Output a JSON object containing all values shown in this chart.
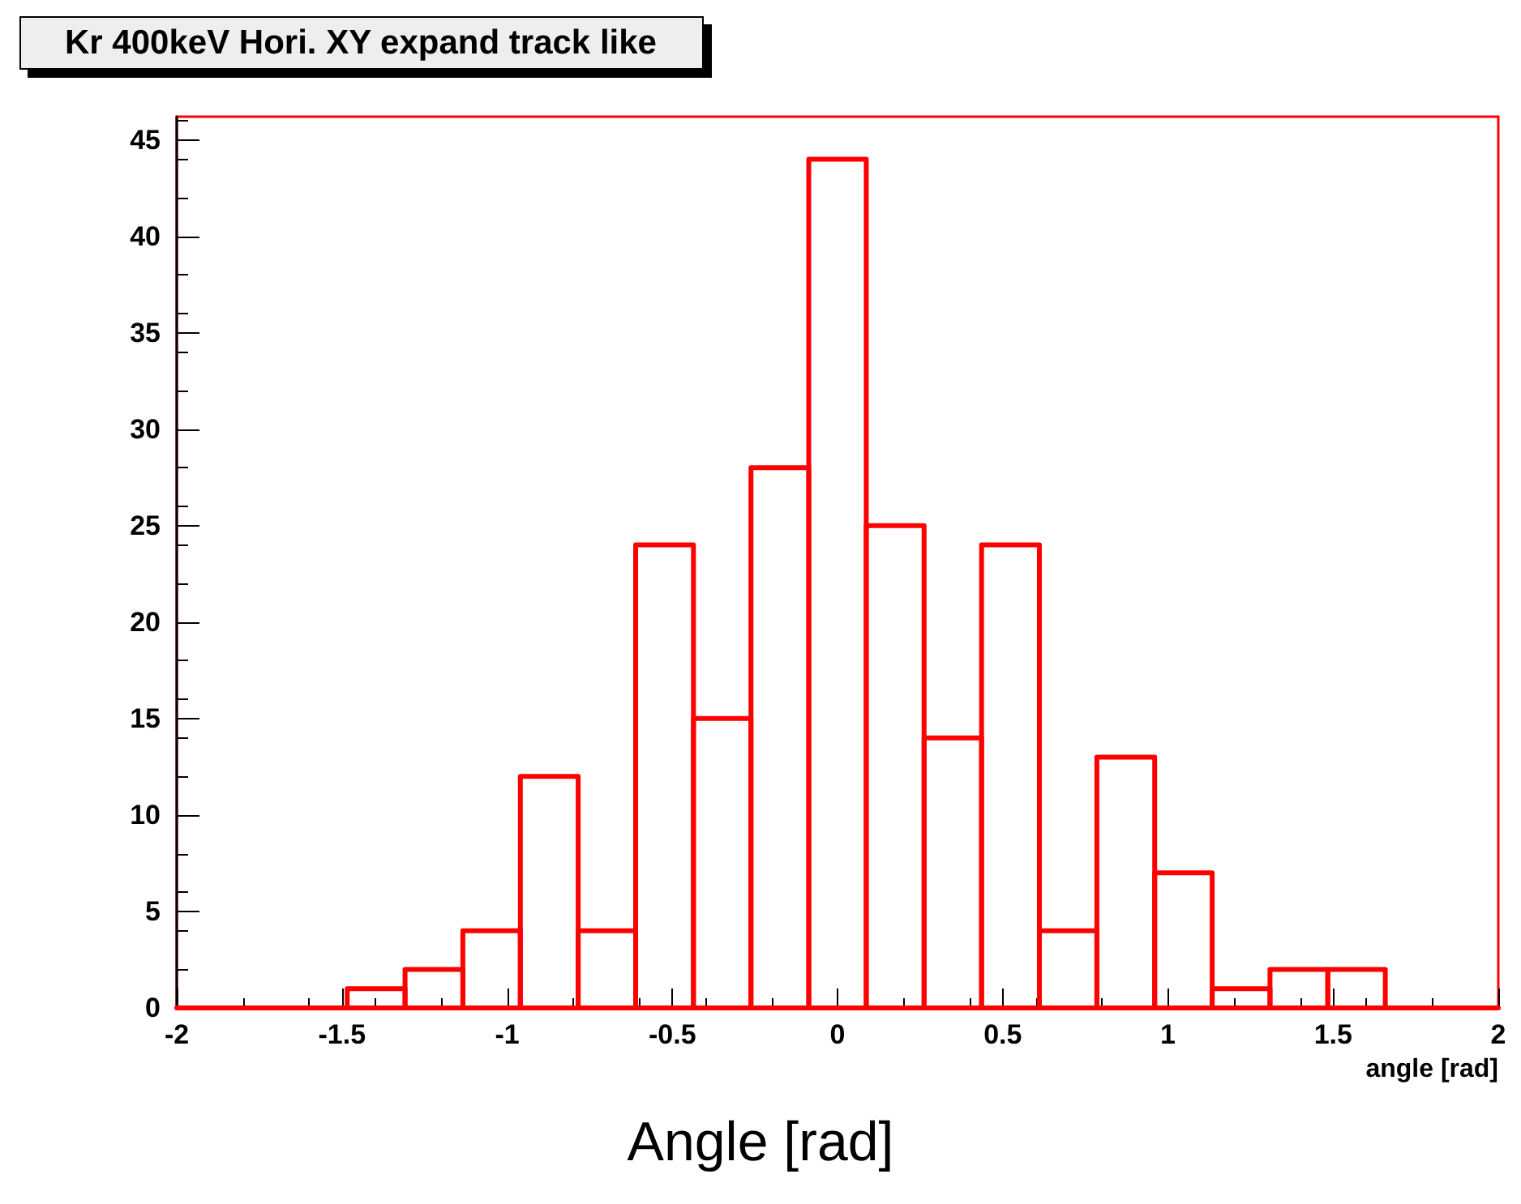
{
  "chart_data": {
    "type": "histogram",
    "title": "Kr 400keV Hori. XY expand track like",
    "xlabel": "angle [rad]",
    "annotations": [
      "Angle [rad]"
    ],
    "bins": [
      -2,
      -1.833,
      -1.658,
      -1.484,
      -1.309,
      -1.134,
      -0.96,
      -0.785,
      -0.611,
      -0.436,
      -0.262,
      -0.087,
      0.087,
      0.262,
      0.436,
      0.611,
      0.785,
      0.96,
      1.134,
      1.309,
      1.484,
      1.658,
      1.833,
      2
    ],
    "values": [
      0,
      0,
      0,
      1,
      2,
      4,
      12,
      4,
      24,
      15,
      28,
      44,
      25,
      14,
      24,
      4,
      13,
      7,
      1,
      2,
      2,
      0,
      0
    ],
    "color": "#ff0000",
    "xlim": [
      -2,
      2
    ],
    "xticks": [
      -2,
      -1.5,
      -1,
      -0.5,
      0,
      0.5,
      1,
      1.5,
      2
    ],
    "ylim": [
      0,
      46.2
    ],
    "yticks": [
      0,
      5,
      10,
      15,
      20,
      25,
      30,
      35,
      40,
      45
    ],
    "grid": false
  }
}
